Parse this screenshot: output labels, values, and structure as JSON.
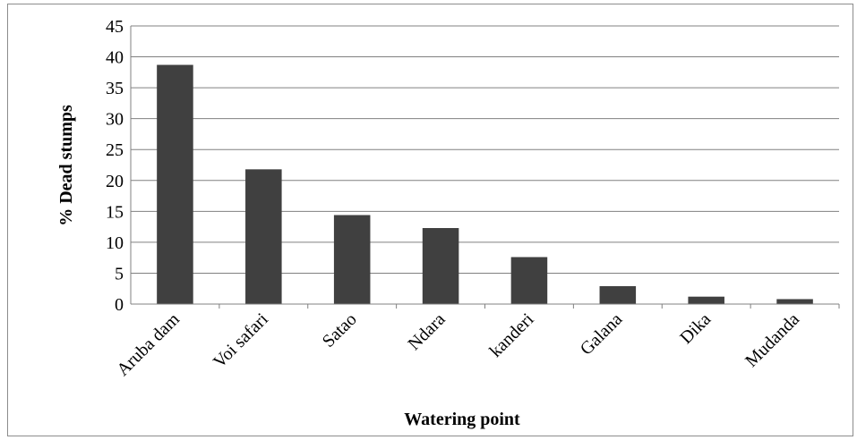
{
  "chart_data": {
    "type": "bar",
    "title": "",
    "xlabel": "Watering point",
    "ylabel": "% Dead stumps",
    "categories": [
      "Aruba dam",
      "Voi safari",
      "Satao",
      "Ndara",
      "kanderi",
      "Galana",
      "Dika",
      "Mudanda"
    ],
    "values": [
      38.7,
      21.8,
      14.4,
      12.3,
      7.6,
      2.9,
      1.2,
      0.8
    ],
    "ylim": [
      0,
      45
    ],
    "yticks": [
      "0",
      "5",
      "10",
      "15",
      "20",
      "25",
      "30",
      "35",
      "40",
      "45"
    ],
    "grid": true,
    "bar_color": "#404040",
    "grid_color": "#808080"
  }
}
